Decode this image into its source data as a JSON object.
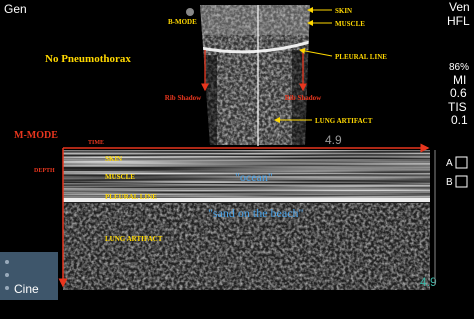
{
  "header": {
    "preset": "Gen",
    "mode": "Ven",
    "probe": "HFL",
    "power": "86%",
    "mi_label": "MI",
    "mi_value": "0.6",
    "tis_label": "TIS",
    "tis_value": "0.1"
  },
  "bmode": {
    "title": "No Pneumothorax",
    "label": "B-MODE",
    "skin": "SKIN",
    "muscle": "MUSCLE",
    "pleural_line": "PLEURAL LINE",
    "lung_artifact": "LUNG ARTIFACT",
    "rib_shadows": [
      "Rib Shadow",
      "Rib Shadow"
    ],
    "depth": "4.9"
  },
  "mmode": {
    "label": "M-MODE",
    "time": "TIME",
    "depth": "DEPTH",
    "skin": "SKIN",
    "muscle": "MUSCLE",
    "pleural_line": "PLEURAL LINE",
    "lung_artifact": "LUNG ARTIFACT",
    "ocean": "\"ocean\"",
    "sand": "\"sand on the beach\"",
    "depth_value": "4.9"
  },
  "controls": {
    "cine": "Cine",
    "markers": [
      "A",
      "B"
    ]
  }
}
